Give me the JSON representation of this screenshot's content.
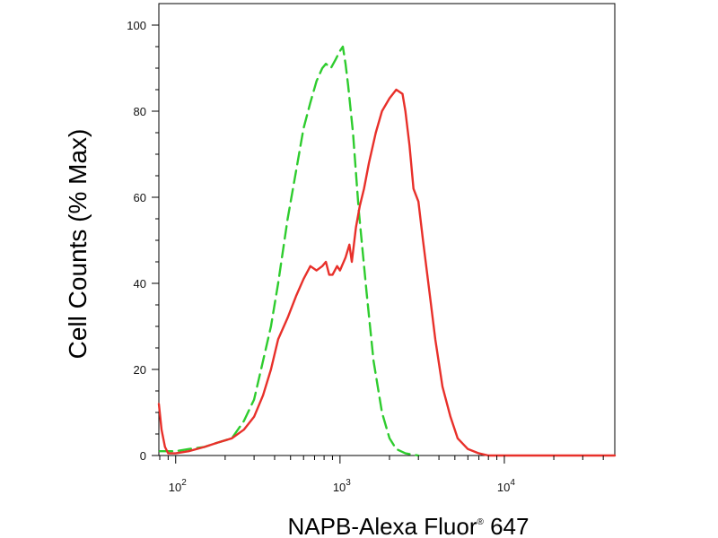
{
  "chart_data": {
    "type": "line",
    "title": "",
    "xlabel_main": "NAPB-Alexa Fluor",
    "xlabel_mark": "®",
    "xlabel_suffix": " 647",
    "ylabel": "Cell Counts (% Max)",
    "xscale": "log",
    "xlim": [
      79,
      47000
    ],
    "ylim": [
      0,
      100
    ],
    "grid": false,
    "legend": "none",
    "x_ticks": [
      {
        "base": "10",
        "exp": "2",
        "value": 100
      },
      {
        "base": "10",
        "exp": "3",
        "value": 1000
      },
      {
        "base": "10",
        "exp": "4",
        "value": 10000
      }
    ],
    "y_ticks": [
      "0",
      "20",
      "40",
      "60",
      "80",
      "100"
    ],
    "y_tick_values": [
      0,
      20,
      40,
      60,
      80,
      100
    ],
    "series": [
      {
        "color": "#2ecc2e",
        "style": "dashed",
        "x": [
          80,
          90,
          100,
          120,
          150,
          180,
          220,
          260,
          300,
          340,
          380,
          420,
          480,
          540,
          600,
          660,
          720,
          780,
          820,
          880,
          940,
          1000,
          1040,
          1080,
          1120,
          1200,
          1300,
          1450,
          1600,
          1800,
          2000,
          2200,
          2500,
          3000
        ],
        "values": [
          1,
          1,
          1,
          1.5,
          2,
          3,
          4,
          8,
          13,
          22,
          30,
          40,
          55,
          66,
          76,
          82,
          87,
          90,
          91,
          90,
          92,
          94,
          95,
          91,
          86,
          75,
          57,
          38,
          22,
          10,
          4,
          1.5,
          0.5,
          0
        ]
      },
      {
        "color": "#e8302a",
        "style": "solid",
        "x": [
          79,
          82,
          86,
          90,
          95,
          100,
          120,
          150,
          180,
          220,
          260,
          300,
          340,
          380,
          420,
          480,
          540,
          600,
          660,
          720,
          780,
          820,
          860,
          900,
          960,
          1000,
          1080,
          1140,
          1180,
          1250,
          1320,
          1400,
          1500,
          1650,
          1800,
          2000,
          2200,
          2400,
          2500,
          2650,
          2800,
          3000,
          3200,
          3500,
          3800,
          4200,
          4700,
          5200,
          6000,
          7000,
          8000,
          10000,
          20000,
          47000
        ],
        "values": [
          12,
          6,
          2,
          0.5,
          0.5,
          0.5,
          1,
          2,
          3,
          4,
          6,
          9,
          14,
          20,
          27,
          32,
          37,
          41,
          44,
          43,
          44,
          45,
          42,
          42,
          44,
          43,
          46,
          49,
          45,
          53,
          58,
          62,
          68,
          75,
          80,
          83,
          85,
          84,
          80,
          72,
          62,
          59,
          50,
          38,
          27,
          16,
          9,
          4,
          1.5,
          0.5,
          0,
          0,
          0,
          0
        ]
      }
    ]
  }
}
